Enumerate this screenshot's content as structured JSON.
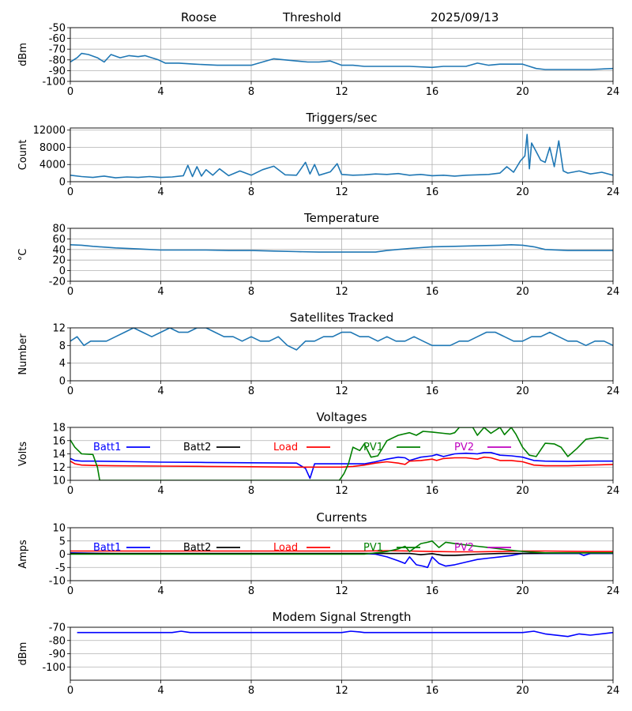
{
  "header": {
    "station": "Roose",
    "mode": "Threshold",
    "date": "2025/09/13"
  },
  "colors": {
    "series": "#1f77b4",
    "grid": "#b0b0b0",
    "batt1": "#0000ff",
    "batt2": "#000000",
    "load": "#ff0000",
    "pv1": "#008000",
    "pv2": "#bf00bf",
    "modem": "#0000ff"
  },
  "x_axis": {
    "ticks": [
      0,
      4,
      8,
      12,
      16,
      20,
      24
    ],
    "range": [
      0,
      24
    ]
  },
  "chart_data": [
    {
      "id": "signal",
      "type": "line",
      "title": "",
      "ylabel": "dBm",
      "ylim": [
        -100,
        -50
      ],
      "yticks": [
        -50,
        -60,
        -70,
        -80,
        -90,
        -100
      ],
      "grid": true,
      "series": [
        {
          "color": "series",
          "x": [
            0,
            0.3,
            0.5,
            0.8,
            1.2,
            1.5,
            1.8,
            2.2,
            2.6,
            3.0,
            3.3,
            3.6,
            3.9,
            4.2,
            4.8,
            5.5,
            6.5,
            7.5,
            8.0,
            8.5,
            9.0,
            9.5,
            10.0,
            10.5,
            11.0,
            11.5,
            12.0,
            12.5,
            13.0,
            14.0,
            15.0,
            16.0,
            16.5,
            17.0,
            17.5,
            18.0,
            18.5,
            19.0,
            19.5,
            20.0,
            20.3,
            20.6,
            21.0,
            21.5,
            22.0,
            23.0,
            24.0
          ],
          "y": [
            -82,
            -78,
            -74,
            -75,
            -78,
            -82,
            -75,
            -78,
            -76,
            -77,
            -76,
            -78,
            -80,
            -83,
            -83,
            -84,
            -85,
            -85,
            -85,
            -82,
            -79,
            -80,
            -81,
            -82,
            -82,
            -81,
            -85,
            -85,
            -86,
            -86,
            -86,
            -87,
            -86,
            -86,
            -86,
            -83,
            -85,
            -84,
            -84,
            -84,
            -86,
            -88,
            -89,
            -89,
            -89,
            -89,
            -88
          ]
        }
      ]
    },
    {
      "id": "triggers",
      "type": "line",
      "title": "Triggers/sec",
      "ylabel": "Count",
      "ylim": [
        0,
        12500
      ],
      "yticks": [
        0,
        4000,
        8000,
        12000
      ],
      "grid": true,
      "series": [
        {
          "color": "series",
          "x": [
            0,
            0.5,
            1.0,
            1.5,
            2.0,
            2.5,
            3.0,
            3.5,
            4.0,
            4.5,
            5.0,
            5.2,
            5.4,
            5.6,
            5.8,
            6.0,
            6.3,
            6.6,
            7.0,
            7.5,
            8.0,
            8.5,
            9.0,
            9.5,
            10.0,
            10.4,
            10.6,
            10.8,
            11.0,
            11.5,
            11.8,
            12.0,
            12.5,
            13.0,
            13.5,
            14.0,
            14.5,
            15.0,
            15.5,
            16.0,
            16.5,
            17.0,
            17.5,
            18.0,
            18.5,
            19.0,
            19.3,
            19.6,
            19.9,
            20.1,
            20.2,
            20.3,
            20.4,
            20.6,
            20.8,
            21.0,
            21.2,
            21.4,
            21.6,
            21.8,
            22.0,
            22.5,
            23.0,
            23.5,
            24.0
          ],
          "y": [
            1500,
            1200,
            1000,
            1300,
            900,
            1100,
            1000,
            1200,
            1000,
            1100,
            1400,
            3800,
            1200,
            3500,
            1300,
            2800,
            1500,
            3000,
            1400,
            2500,
            1500,
            2800,
            3600,
            1600,
            1500,
            4500,
            1800,
            4000,
            1500,
            2300,
            4200,
            1700,
            1500,
            1600,
            1800,
            1700,
            1900,
            1500,
            1700,
            1400,
            1500,
            1300,
            1500,
            1600,
            1700,
            2000,
            3500,
            2200,
            4800,
            6000,
            11000,
            3000,
            9000,
            7000,
            5000,
            4500,
            8000,
            3500,
            9500,
            2500,
            2000,
            2500,
            1800,
            2200,
            1500
          ]
        }
      ]
    },
    {
      "id": "temperature",
      "type": "line",
      "title": "Temperature",
      "ylabel": "°C",
      "ylim": [
        -20,
        80
      ],
      "yticks": [
        -20,
        0,
        20,
        40,
        60,
        80
      ],
      "grid": true,
      "series": [
        {
          "color": "series",
          "x": [
            0,
            0.5,
            1,
            2,
            3,
            4,
            5,
            6,
            7,
            8,
            9,
            10,
            11,
            12,
            13,
            13.5,
            14,
            15,
            16,
            17,
            18,
            19,
            19.5,
            20,
            20.5,
            21,
            22,
            23,
            24
          ],
          "y": [
            49,
            48,
            46,
            43,
            41,
            39,
            39,
            39,
            38,
            38,
            37,
            36,
            35,
            35,
            35,
            35,
            38,
            42,
            45,
            46,
            47,
            48,
            49,
            48,
            45,
            40,
            38,
            38,
            38
          ]
        }
      ]
    },
    {
      "id": "satellites",
      "type": "line",
      "title": "Satellites Tracked",
      "ylabel": "Number",
      "ylim": [
        0,
        12
      ],
      "yticks": [
        0,
        4,
        8,
        12
      ],
      "grid": true,
      "series": [
        {
          "color": "series",
          "x": [
            0,
            0.3,
            0.6,
            0.9,
            1.2,
            1.6,
            2.0,
            2.4,
            2.8,
            3.2,
            3.6,
            4.0,
            4.4,
            4.8,
            5.2,
            5.6,
            6.0,
            6.4,
            6.8,
            7.2,
            7.6,
            8.0,
            8.4,
            8.8,
            9.2,
            9.6,
            10.0,
            10.4,
            10.8,
            11.2,
            11.6,
            12.0,
            12.4,
            12.8,
            13.2,
            13.6,
            14.0,
            14.4,
            14.8,
            15.2,
            15.6,
            16.0,
            16.4,
            16.8,
            17.2,
            17.6,
            18.0,
            18.4,
            18.8,
            19.2,
            19.6,
            20.0,
            20.4,
            20.8,
            21.2,
            21.6,
            22.0,
            22.4,
            22.8,
            23.2,
            23.6,
            24.0
          ],
          "y": [
            9,
            10,
            8,
            9,
            9,
            9,
            10,
            11,
            12,
            11,
            10,
            11,
            12,
            11,
            11,
            12,
            12,
            11,
            10,
            10,
            9,
            10,
            9,
            9,
            10,
            8,
            7,
            9,
            9,
            10,
            10,
            11,
            11,
            10,
            10,
            9,
            10,
            9,
            9,
            10,
            9,
            8,
            8,
            8,
            9,
            9,
            10,
            11,
            11,
            10,
            9,
            9,
            10,
            10,
            11,
            10,
            9,
            9,
            8,
            9,
            9,
            8
          ]
        }
      ]
    },
    {
      "id": "voltages",
      "type": "line",
      "title": "Voltages",
      "ylabel": "Volts",
      "ylim": [
        10,
        18
      ],
      "yticks": [
        10,
        12,
        14,
        16,
        18
      ],
      "grid": true,
      "legend": [
        {
          "label": "Batt1",
          "color": "batt1"
        },
        {
          "label": "Batt2",
          "color": "batt2"
        },
        {
          "label": "Load",
          "color": "load"
        },
        {
          "label": "PV1",
          "color": "pv1"
        },
        {
          "label": "PV2",
          "color": "pv2"
        }
      ],
      "series": [
        {
          "name": "Batt1",
          "color": "batt1",
          "x": [
            0,
            0.2,
            0.5,
            1,
            2,
            3,
            4,
            6,
            8,
            10,
            10.4,
            10.6,
            10.8,
            12,
            13,
            13.5,
            14,
            14.5,
            14.8,
            15,
            15.5,
            16,
            16.2,
            16.5,
            17,
            17.5,
            18,
            18.3,
            18.6,
            19,
            19.5,
            20,
            20.5,
            21,
            22,
            23,
            24
          ],
          "y": [
            13.3,
            13.0,
            12.9,
            12.9,
            12.85,
            12.8,
            12.75,
            12.7,
            12.65,
            12.6,
            11.8,
            10.3,
            12.5,
            12.5,
            12.5,
            12.8,
            13.2,
            13.5,
            13.4,
            13.0,
            13.5,
            13.7,
            13.9,
            13.6,
            14.0,
            14.1,
            14.0,
            14.2,
            14.2,
            13.8,
            13.7,
            13.5,
            13.0,
            12.9,
            12.85,
            12.9,
            12.9
          ]
        },
        {
          "name": "Load",
          "color": "load",
          "x": [
            0,
            0.2,
            0.5,
            1,
            2,
            4,
            6,
            8,
            10,
            12,
            12.5,
            13,
            13.5,
            14,
            14.5,
            14.8,
            15,
            15.5,
            16,
            16.2,
            16.5,
            17,
            17.5,
            18,
            18.3,
            18.6,
            19,
            19.5,
            20,
            20.5,
            21,
            22,
            23,
            24
          ],
          "y": [
            12.9,
            12.5,
            12.3,
            12.25,
            12.2,
            12.15,
            12.1,
            12.05,
            12.0,
            12.0,
            12.1,
            12.3,
            12.6,
            12.8,
            12.6,
            12.4,
            12.9,
            13.0,
            13.2,
            13.0,
            13.3,
            13.4,
            13.4,
            13.2,
            13.5,
            13.4,
            13.0,
            13.0,
            12.8,
            12.3,
            12.2,
            12.2,
            12.3,
            12.4
          ]
        },
        {
          "name": "PV1",
          "color": "pv1",
          "x": [
            0,
            0.2,
            0.5,
            1,
            1.2,
            1.3,
            11.9,
            12.1,
            12.3,
            12.5,
            12.8,
            13,
            13.3,
            13.6,
            14,
            14.5,
            15,
            15.3,
            15.6,
            16,
            16.5,
            16.8,
            17,
            17.2,
            17.5,
            17.8,
            18,
            18.3,
            18.6,
            19,
            19.2,
            19.5,
            19.7,
            20,
            20.3,
            20.6,
            21,
            21.4,
            21.7,
            22,
            22.4,
            22.8,
            23,
            23.4,
            23.8
          ],
          "y": [
            16.1,
            15.0,
            14.0,
            13.9,
            12.0,
            10.0,
            10.0,
            11.0,
            12.5,
            15.0,
            14.5,
            15.5,
            13.5,
            13.7,
            16.0,
            16.8,
            17.2,
            16.8,
            17.4,
            17.3,
            17.1,
            17.0,
            17.2,
            18.0,
            18.0,
            18.0,
            16.8,
            18.0,
            17.1,
            18.0,
            16.9,
            18.0,
            17.0,
            15.0,
            13.8,
            13.6,
            15.6,
            15.5,
            15.0,
            13.6,
            14.8,
            16.2,
            16.3,
            16.5,
            16.3
          ]
        }
      ]
    },
    {
      "id": "currents",
      "type": "line",
      "title": "Currents",
      "ylabel": "Amps",
      "ylim": [
        -10,
        10
      ],
      "yticks": [
        -10,
        -5,
        0,
        5,
        10
      ],
      "grid": true,
      "legend": [
        {
          "label": "Batt1",
          "color": "batt1"
        },
        {
          "label": "Batt2",
          "color": "batt2"
        },
        {
          "label": "Load",
          "color": "load"
        },
        {
          "label": "PV1",
          "color": "pv1"
        },
        {
          "label": "PV2",
          "color": "pv2"
        }
      ],
      "series": [
        {
          "name": "Batt1",
          "color": "batt1",
          "x": [
            0,
            2,
            4,
            6,
            8,
            10,
            12,
            13,
            13.5,
            14,
            14.5,
            14.8,
            15,
            15.3,
            15.6,
            15.8,
            16,
            16.3,
            16.6,
            17,
            17.5,
            18,
            18.5,
            19,
            19.5,
            20,
            21,
            22,
            22.5,
            22.7,
            23,
            24
          ],
          "y": [
            0.5,
            0.2,
            0.2,
            0.2,
            0.2,
            0.2,
            0.2,
            0.2,
            0,
            -1,
            -2.5,
            -3.5,
            -1,
            -4,
            -4.5,
            -5,
            -1,
            -3.5,
            -4.5,
            -4,
            -3,
            -2,
            -1.5,
            -1,
            -0.5,
            0.3,
            0.3,
            0.3,
            0.3,
            -0.5,
            0.3,
            0.3
          ]
        },
        {
          "name": "Batt2",
          "color": "batt2",
          "x": [
            0,
            4,
            8,
            12,
            14,
            15,
            15.5,
            16,
            16.5,
            17,
            18,
            19,
            20,
            22,
            24
          ],
          "y": [
            0.3,
            0.3,
            0.3,
            0.3,
            0.3,
            0.3,
            -0.2,
            0.2,
            -0.5,
            -0.5,
            0,
            0.3,
            0.3,
            0.5,
            0.5
          ]
        },
        {
          "name": "Load",
          "color": "load",
          "x": [
            0,
            4,
            8,
            12,
            13,
            14,
            15,
            16,
            17,
            18,
            19,
            20,
            21,
            22,
            23,
            24
          ],
          "y": [
            1.2,
            1.2,
            1.2,
            1.2,
            1.2,
            1.3,
            1.2,
            1.0,
            0.9,
            0.9,
            1.0,
            1.2,
            1.2,
            1.1,
            1.0,
            1.0
          ]
        },
        {
          "name": "PV1",
          "color": "pv1",
          "x": [
            0,
            4,
            8,
            12,
            13,
            13.5,
            14,
            14.5,
            14.8,
            15,
            15.5,
            15.8,
            16,
            16.3,
            16.6,
            17,
            17.5,
            18,
            18.5,
            19,
            19.5,
            20,
            21,
            22,
            23,
            24
          ],
          "y": [
            0,
            0,
            0,
            0,
            0,
            0.5,
            1,
            2,
            3,
            1,
            4,
            4.5,
            5,
            2.5,
            4.5,
            4,
            3.5,
            3,
            2.5,
            2,
            1.5,
            1,
            0.5,
            0.5,
            0.5,
            0.5
          ]
        }
      ]
    },
    {
      "id": "modem",
      "type": "line",
      "title": "Modem Signal Strength",
      "ylabel": "dBm",
      "ylim": [
        -110,
        -70
      ],
      "yticks": [
        -70,
        -80,
        -90,
        -100
      ],
      "grid": true,
      "series": [
        {
          "name": "Modem",
          "color": "modem",
          "x": [
            0.3,
            1,
            2,
            3,
            4,
            4.5,
            4.9,
            5.3,
            6,
            7,
            8,
            9,
            10,
            11,
            12,
            12.4,
            12.8,
            13,
            14,
            15,
            16,
            17,
            18,
            19,
            20,
            20.5,
            21,
            22,
            22.5,
            23,
            24
          ],
          "y": [
            -74,
            -74,
            -74,
            -74,
            -74,
            -74,
            -73,
            -74,
            -74,
            -74,
            -74,
            -74,
            -74,
            -74,
            -74,
            -73,
            -73.5,
            -74,
            -74,
            -74,
            -74,
            -74,
            -74,
            -74,
            -74,
            -73,
            -75,
            -77,
            -75,
            -76,
            -74
          ]
        }
      ]
    }
  ]
}
